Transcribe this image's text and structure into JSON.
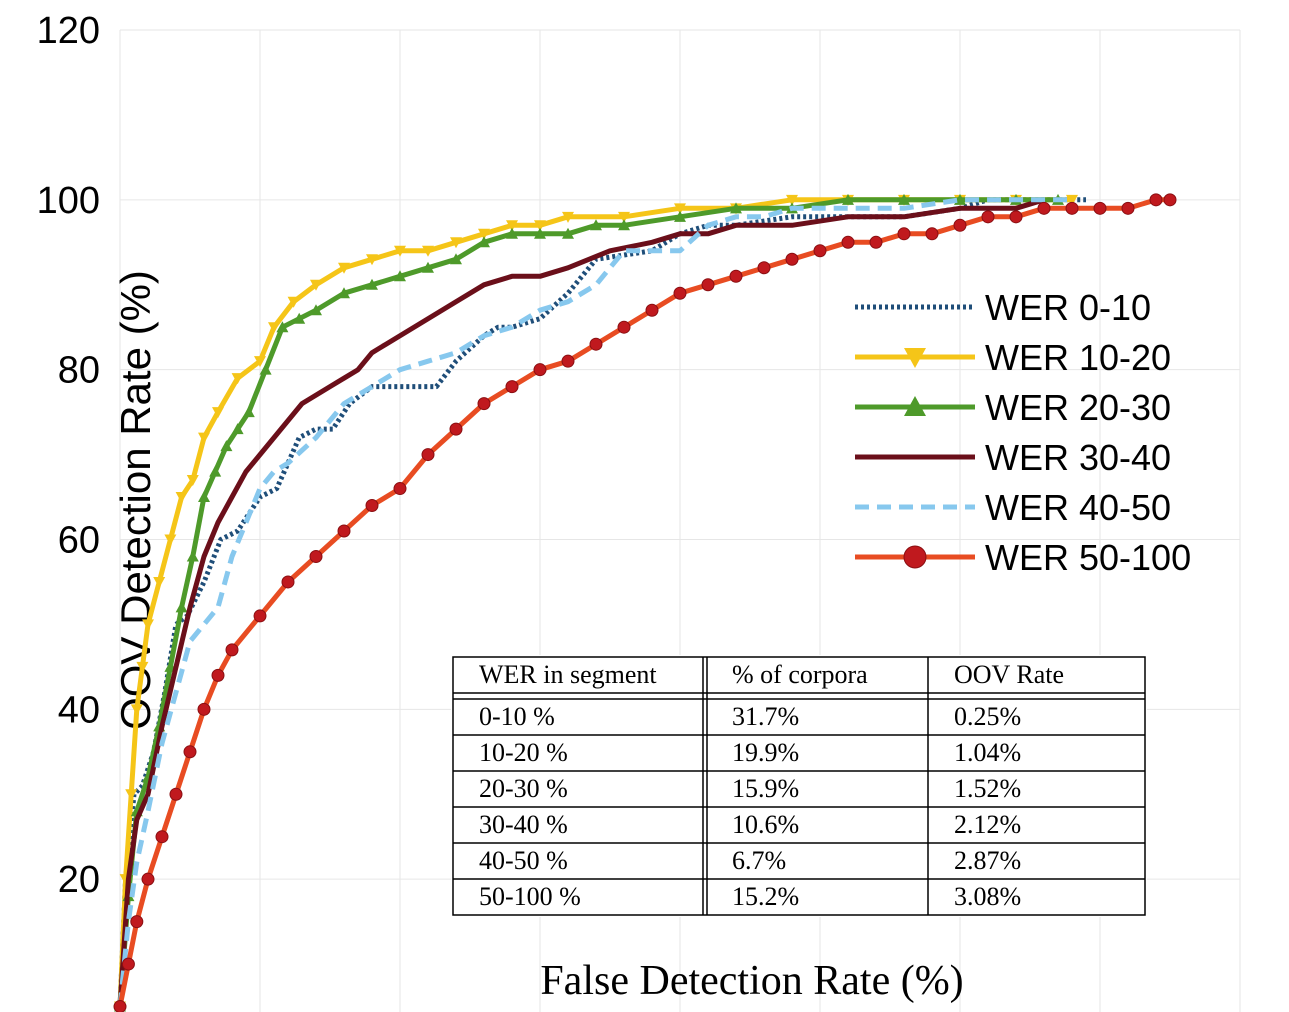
{
  "chart_data": {
    "type": "line",
    "title": "",
    "xlabel": "False Detection Rate (%)",
    "ylabel": "OOV Detection Rate (%)",
    "xlim": [
      0,
      40
    ],
    "ylim": [
      0,
      120
    ],
    "yticks": [
      "20",
      "40",
      "60",
      "80",
      "100",
      "120"
    ],
    "grid": true,
    "legend_position": "right",
    "series": [
      {
        "name": "WER 0-10",
        "color": "#1f4e79",
        "style": "dotted",
        "marker": "none",
        "x": [
          0,
          0.2,
          0.5,
          0.8,
          1.2,
          1.6,
          2.0,
          2.4,
          3.0,
          3.6,
          4.2,
          5.0,
          5.6,
          6.4,
          7.0,
          7.6,
          8.2,
          9.0,
          10.0,
          11.3,
          12.0,
          13.0,
          13.5,
          14.0,
          15.0,
          16.0,
          17.0,
          19.0,
          20.0,
          21.0,
          22.0,
          24.0,
          26.0,
          28.0,
          30.0,
          31.0,
          33.0,
          34.5
        ],
        "y": [
          5,
          20,
          30,
          31,
          35,
          42,
          50,
          51,
          55,
          60,
          61,
          65,
          66,
          72,
          73,
          73,
          76,
          78,
          78,
          78,
          81,
          84,
          85,
          85,
          86,
          89,
          93,
          94,
          96,
          97,
          97,
          98,
          98,
          98,
          99,
          100,
          100,
          100
        ]
      },
      {
        "name": "WER 10-20",
        "color": "#f5c518",
        "style": "solid",
        "marker": "triangle-down",
        "x": [
          0,
          0.2,
          0.4,
          0.6,
          0.8,
          1.0,
          1.4,
          1.8,
          2.2,
          2.6,
          3.0,
          3.5,
          4.2,
          5.0,
          5.5,
          6.2,
          7.0,
          8.0,
          9.0,
          10.0,
          11.0,
          12.0,
          13.0,
          14.0,
          15.0,
          16.0,
          18.0,
          20.0,
          22.0,
          24.0,
          26.0,
          28.0,
          30.0,
          32.0,
          34.0
        ],
        "y": [
          5,
          20,
          30,
          40,
          45,
          50,
          55,
          60,
          65,
          67,
          72,
          75,
          79,
          81,
          85,
          88,
          90,
          92,
          93,
          94,
          94,
          95,
          96,
          97,
          97,
          98,
          98,
          99,
          99,
          100,
          100,
          100,
          100,
          100,
          100
        ]
      },
      {
        "name": "WER 20-30",
        "color": "#4e9a2a",
        "style": "solid",
        "marker": "triangle-up",
        "x": [
          0,
          0.3,
          0.6,
          1.0,
          1.4,
          1.8,
          2.2,
          2.6,
          3.0,
          3.4,
          3.8,
          4.2,
          4.6,
          5.2,
          5.8,
          6.4,
          7.0,
          8.0,
          9.0,
          10.0,
          11.0,
          12.0,
          13.0,
          14.0,
          15.0,
          16.0,
          17.0,
          18.0,
          20.0,
          22.0,
          24.0,
          26.0,
          28.0,
          30.0,
          32.0,
          33.5
        ],
        "y": [
          5,
          18,
          28,
          32,
          38,
          45,
          52,
          58,
          65,
          68,
          71,
          73,
          75,
          80,
          85,
          86,
          87,
          89,
          90,
          91,
          92,
          93,
          95,
          96,
          96,
          96,
          97,
          97,
          98,
          99,
          99,
          100,
          100,
          100,
          100,
          100
        ]
      },
      {
        "name": "WER 30-40",
        "color": "#6b0f1a",
        "style": "solid",
        "marker": "none",
        "x": [
          0,
          0.3,
          0.6,
          1.0,
          1.5,
          2.0,
          2.5,
          3.0,
          3.5,
          4.0,
          4.5,
          5.0,
          5.5,
          6.0,
          6.5,
          7.0,
          7.5,
          8.0,
          8.5,
          9.0,
          9.5,
          10.0,
          11.0,
          12.0,
          13.0,
          14.0,
          15.0,
          16.0,
          17.5,
          19.0,
          20.0,
          21.0,
          22.0,
          24.0,
          26.0,
          28.0,
          30.0,
          32.0,
          33.0
        ],
        "y": [
          5,
          20,
          27,
          30,
          38,
          45,
          52,
          58,
          62,
          65,
          68,
          70,
          72,
          74,
          76,
          77,
          78,
          79,
          80,
          82,
          83,
          84,
          86,
          88,
          90,
          91,
          91,
          92,
          94,
          95,
          96,
          96,
          97,
          97,
          98,
          98,
          99,
          99,
          100
        ]
      },
      {
        "name": "WER 40-50",
        "color": "#87c8ee",
        "style": "dashed",
        "marker": "none",
        "x": [
          0,
          0.3,
          0.6,
          1.0,
          1.5,
          2.0,
          2.5,
          3.0,
          3.5,
          4.0,
          4.5,
          5.0,
          5.5,
          6.0,
          7.0,
          8.0,
          9.0,
          10.0,
          11.0,
          12.0,
          13.0,
          14.0,
          15.0,
          16.0,
          17.0,
          18.0,
          19.0,
          20.0,
          21.0,
          22.0,
          23.0,
          24.0,
          26.0,
          28.0,
          30.0,
          32.0,
          34.0
        ],
        "y": [
          5,
          15,
          22,
          28,
          36,
          42,
          48,
          50,
          52,
          58,
          62,
          66,
          68,
          69,
          72,
          76,
          78,
          80,
          81,
          82,
          84,
          85,
          87,
          88,
          90,
          94,
          94,
          94,
          97,
          98,
          98,
          99,
          99,
          99,
          100,
          100,
          100
        ]
      },
      {
        "name": "WER 50-100",
        "color": "#e84c22",
        "style": "solid",
        "marker": "circle",
        "x": [
          0,
          0.3,
          0.6,
          1.0,
          1.5,
          2.0,
          2.5,
          3.0,
          3.5,
          4.0,
          5.0,
          6.0,
          7.0,
          8.0,
          9.0,
          10.0,
          11.0,
          12.0,
          13.0,
          14.0,
          15.0,
          16.0,
          17.0,
          18.0,
          19.0,
          20.0,
          21.0,
          22.0,
          23.0,
          24.0,
          25.0,
          26.0,
          27.0,
          28.0,
          29.0,
          30.0,
          31.0,
          32.0,
          33.0,
          34.0,
          35.0,
          36.0,
          37.0,
          37.5
        ],
        "y": [
          5,
          10,
          15,
          20,
          25,
          30,
          35,
          40,
          44,
          47,
          51,
          55,
          58,
          61,
          64,
          66,
          70,
          73,
          76,
          78,
          80,
          81,
          83,
          85,
          87,
          89,
          90,
          91,
          92,
          93,
          94,
          95,
          95,
          96,
          96,
          97,
          98,
          98,
          99,
          99,
          99,
          99,
          100,
          100
        ]
      }
    ],
    "table": {
      "headers": [
        "WER in segment",
        "% of corpora",
        "OOV Rate"
      ],
      "rows": [
        [
          "0-10 %",
          "31.7%",
          "0.25%"
        ],
        [
          "10-20 %",
          "19.9%",
          "1.04%"
        ],
        [
          "20-30 %",
          "15.9%",
          "1.52%"
        ],
        [
          "30-40 %",
          "10.6%",
          "2.12%"
        ],
        [
          "40-50 %",
          "6.7%",
          "2.87%"
        ],
        [
          "50-100 %",
          "15.2%",
          "3.08%"
        ]
      ]
    }
  }
}
